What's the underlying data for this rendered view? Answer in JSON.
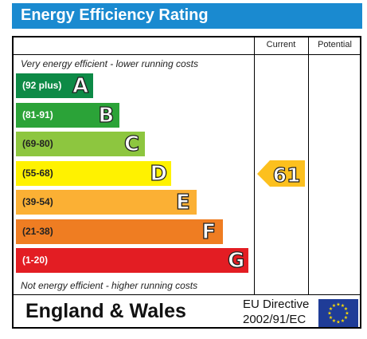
{
  "title": "Energy Efficiency Rating",
  "columns": {
    "current": "Current",
    "potential": "Potential"
  },
  "top_note": "Very energy efficient - lower running costs",
  "bottom_note": "Not energy efficient - higher running costs",
  "bands": [
    {
      "range": "(92 plus)",
      "letter": "A",
      "color": "#0d8a46",
      "text_color": "#ffffff"
    },
    {
      "range": "(81-91)",
      "letter": "B",
      "color": "#2ba338",
      "text_color": "#ffffff"
    },
    {
      "range": "(69-80)",
      "letter": "C",
      "color": "#8dc63f",
      "text_color": "#222222"
    },
    {
      "range": "(55-68)",
      "letter": "D",
      "color": "#fff200",
      "text_color": "#222222"
    },
    {
      "range": "(39-54)",
      "letter": "E",
      "color": "#fbb034",
      "text_color": "#222222"
    },
    {
      "range": "(21-38)",
      "letter": "F",
      "color": "#ef7d22",
      "text_color": "#222222"
    },
    {
      "range": "(1-20)",
      "letter": "G",
      "color": "#e31d23",
      "text_color": "#ffffff"
    }
  ],
  "current_rating": {
    "value": "61",
    "band": "D",
    "color": "#fcc01e"
  },
  "footer": {
    "region": "England & Wales",
    "directive_line1": "EU Directive",
    "directive_line2": "2002/91/EC",
    "flag_icon": "eu-flag-icon"
  }
}
